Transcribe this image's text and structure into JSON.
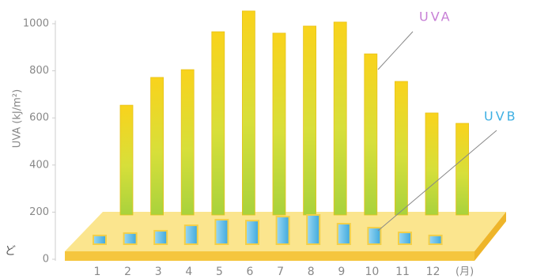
{
  "chart_data": {
    "type": "bar3d",
    "y_label": "UVA (kJ/m²)",
    "x_unit": "(月)",
    "fragment": "ど",
    "categories": [
      "1",
      "2",
      "3",
      "4",
      "5",
      "6",
      "7",
      "8",
      "9",
      "10",
      "11",
      "12"
    ],
    "series": [
      {
        "name": "UVA",
        "color": "#c77fd6",
        "values": [
          654,
          772,
          805,
          966,
          1054,
          960,
          990,
          1007,
          872,
          755,
          621,
          577
        ]
      },
      {
        "name": "UVB",
        "color": "#3fb0e3",
        "values": [
          101,
          111,
          121,
          144,
          168,
          164,
          181,
          188,
          151,
          134,
          114,
          101
        ]
      }
    ],
    "ylim": [
      0,
      1000
    ],
    "yticks": [
      0,
      200,
      400,
      600,
      800,
      1000
    ]
  }
}
